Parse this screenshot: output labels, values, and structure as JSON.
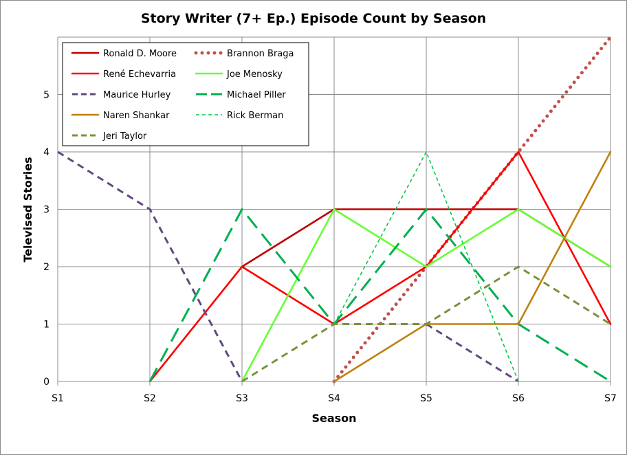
{
  "chart_data": {
    "type": "line",
    "title": "Story Writer (7+ Ep.) Episode Count by Season",
    "xlabel": "Season",
    "ylabel": "Televised Stories",
    "categories": [
      "S1",
      "S2",
      "S3",
      "S4",
      "S5",
      "S6",
      "S7"
    ],
    "ylim": [
      0,
      6
    ],
    "yticks": [
      0,
      1,
      2,
      3,
      4,
      5
    ],
    "grid": true,
    "legend_position": "top-left",
    "series": [
      {
        "name": "Ronald D. Moore",
        "color": "#c00000",
        "dash": "solid",
        "values": [
          null,
          null,
          2,
          3,
          3,
          3,
          2
        ]
      },
      {
        "name": "Brannon Braga",
        "color": "#c0504d",
        "dash": "dotted",
        "values": [
          null,
          null,
          null,
          0,
          2,
          4,
          6
        ]
      },
      {
        "name": "René Echevarria",
        "color": "#ff0000",
        "dash": "solid",
        "values": [
          null,
          0,
          2,
          1,
          2,
          4,
          1
        ]
      },
      {
        "name": "Joe Menosky",
        "color": "#66ff33",
        "dash": "solid",
        "values": [
          null,
          null,
          0,
          3,
          2,
          3,
          2
        ]
      },
      {
        "name": "Maurice Hurley",
        "color": "#604a7b",
        "dash": "dashed",
        "values": [
          4,
          3,
          0,
          null,
          1,
          0,
          null
        ]
      },
      {
        "name": "Michael Piller",
        "color": "#00b050",
        "dash": "longdash",
        "values": [
          null,
          0,
          3,
          1,
          3,
          1,
          0
        ]
      },
      {
        "name": "Naren Shankar",
        "color": "#c0800c",
        "dash": "solid",
        "values": [
          null,
          null,
          null,
          0,
          1,
          1,
          4
        ]
      },
      {
        "name": "Rick Berman",
        "color": "#00cc44",
        "dash": "shortdash",
        "values": [
          null,
          null,
          null,
          1,
          4,
          0,
          null
        ]
      },
      {
        "name": "Jeri Taylor",
        "color": "#77933c",
        "dash": "dashed",
        "values": [
          null,
          null,
          0,
          1,
          1,
          2,
          1
        ]
      }
    ]
  }
}
